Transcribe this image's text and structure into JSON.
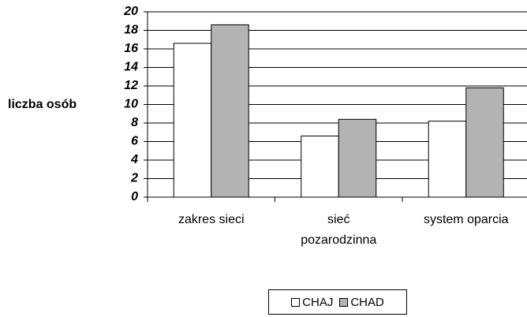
{
  "chart_data": {
    "type": "bar",
    "ylabel": "liczba osób",
    "categories": [
      "zakres sieci",
      "sieć\npozarodzinna",
      "system oparcia"
    ],
    "series": [
      {
        "name": "CHAJ",
        "color": "#ffffff",
        "values": [
          16.6,
          6.6,
          8.2
        ]
      },
      {
        "name": "CHAD",
        "color": "#b3b3b3",
        "values": [
          18.6,
          8.4,
          11.8
        ]
      }
    ],
    "ylim": [
      0,
      20
    ],
    "yticks": [
      0,
      2,
      4,
      6,
      8,
      10,
      12,
      14,
      16,
      18,
      20
    ],
    "grid": true,
    "legend": "bottom"
  }
}
